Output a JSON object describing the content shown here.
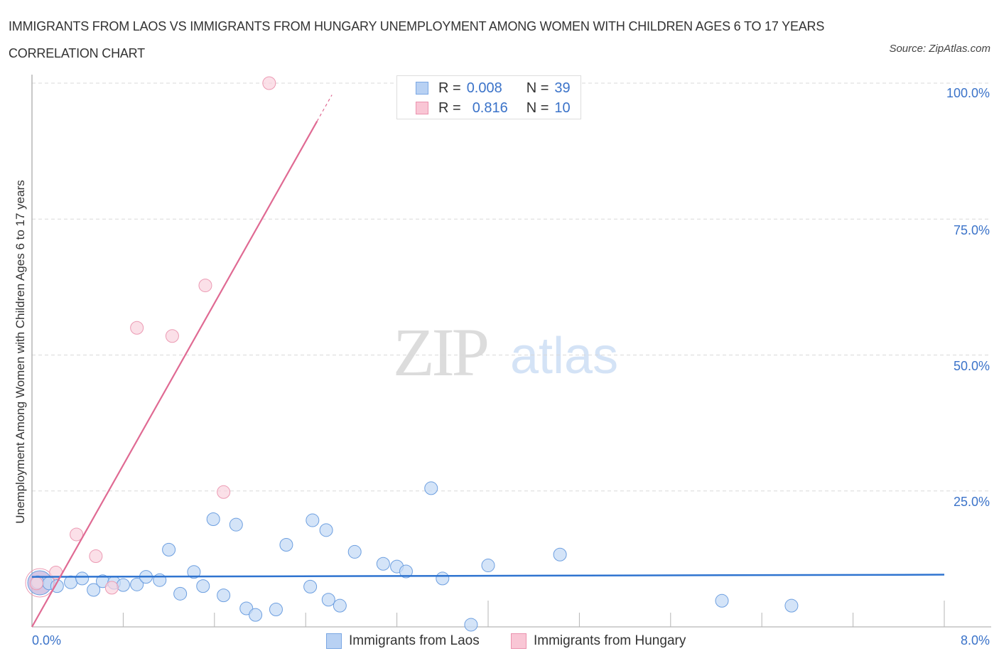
{
  "header": {
    "title": "IMMIGRANTS FROM LAOS VS IMMIGRANTS FROM HUNGARY UNEMPLOYMENT AMONG WOMEN WITH CHILDREN AGES 6 TO 17 YEARS CORRELATION CHART",
    "source": "Source: ZipAtlas.com"
  },
  "watermark": {
    "zip": "ZIP",
    "atlas": "atlas"
  },
  "axes": {
    "ylabel": "Unemployment Among Women with Children Ages 6 to 17 years",
    "yticks": [
      "100.0%",
      "75.0%",
      "50.0%",
      "25.0%"
    ],
    "xticks": {
      "min": "0.0%",
      "max": "8.0%"
    }
  },
  "stats_legend": {
    "rows": [
      {
        "r_label": "R =",
        "r_value": "0.008",
        "n_label": "N =",
        "n_value": "39",
        "color": "#b8d1f3",
        "border": "#7aa7e3"
      },
      {
        "r_label": "R =",
        "r_value": "0.816",
        "n_label": "N =",
        "n_value": "10",
        "color": "#f9c6d5",
        "border": "#eb92ae"
      }
    ]
  },
  "legend": {
    "items": [
      {
        "label": "Immigrants from Laos",
        "color": "#b8d1f3",
        "border": "#7aa7e3"
      },
      {
        "label": "Immigrants from Hungary",
        "color": "#f9c6d5",
        "border": "#eb92ae"
      }
    ]
  },
  "colors": {
    "laos_fill": "#c6dbf5",
    "laos_stroke": "#6d9fe0",
    "laos_line": "#2f74d0",
    "hungary_fill": "#fad3de",
    "hungary_stroke": "#ec9ab3",
    "hungary_line": "#e06a93",
    "value_text": "#3b73c9"
  },
  "chart_data": {
    "type": "scatter",
    "title": "Immigrants from Laos vs Immigrants from Hungary Unemployment Among Women with Children Ages 6 to 17 years Correlation Chart",
    "xlabel": "",
    "ylabel": "Unemployment Among Women with Children Ages 6 to 17 years",
    "xlim": [
      0,
      8
    ],
    "ylim": [
      0,
      100
    ],
    "x_unit": "%",
    "y_unit": "%",
    "grid": true,
    "legend_position": "bottom",
    "series": [
      {
        "name": "Immigrants from Laos",
        "R": 0.008,
        "N": 39,
        "trend": {
          "x": [
            0,
            8
          ],
          "y": [
            9.2,
            9.6
          ]
        },
        "points": [
          {
            "x": 0.05,
            "y": 8.2
          },
          {
            "x": 0.15,
            "y": 8.0
          },
          {
            "x": 0.22,
            "y": 7.5
          },
          {
            "x": 0.34,
            "y": 8.2
          },
          {
            "x": 0.44,
            "y": 8.9
          },
          {
            "x": 0.54,
            "y": 6.8
          },
          {
            "x": 0.62,
            "y": 8.4
          },
          {
            "x": 0.72,
            "y": 8.1
          },
          {
            "x": 0.8,
            "y": 7.7
          },
          {
            "x": 0.92,
            "y": 7.8
          },
          {
            "x": 1.0,
            "y": 9.2
          },
          {
            "x": 1.12,
            "y": 8.6
          },
          {
            "x": 1.2,
            "y": 14.2
          },
          {
            "x": 1.3,
            "y": 6.1
          },
          {
            "x": 1.42,
            "y": 10.1
          },
          {
            "x": 1.5,
            "y": 7.5
          },
          {
            "x": 1.59,
            "y": 19.8
          },
          {
            "x": 1.68,
            "y": 5.8
          },
          {
            "x": 1.79,
            "y": 18.8
          },
          {
            "x": 1.88,
            "y": 3.4
          },
          {
            "x": 1.96,
            "y": 2.2
          },
          {
            "x": 2.14,
            "y": 3.2
          },
          {
            "x": 2.23,
            "y": 15.1
          },
          {
            "x": 2.44,
            "y": 7.4
          },
          {
            "x": 2.46,
            "y": 19.6
          },
          {
            "x": 2.6,
            "y": 5.0
          },
          {
            "x": 2.58,
            "y": 17.8
          },
          {
            "x": 2.7,
            "y": 3.9
          },
          {
            "x": 2.83,
            "y": 13.8
          },
          {
            "x": 3.08,
            "y": 11.6
          },
          {
            "x": 3.2,
            "y": 11.1
          },
          {
            "x": 3.28,
            "y": 10.2
          },
          {
            "x": 3.5,
            "y": 25.5
          },
          {
            "x": 3.6,
            "y": 8.9
          },
          {
            "x": 3.85,
            "y": 0.4
          },
          {
            "x": 4.0,
            "y": 11.3
          },
          {
            "x": 4.63,
            "y": 13.3
          },
          {
            "x": 6.05,
            "y": 4.8
          },
          {
            "x": 6.66,
            "y": 3.9
          }
        ]
      },
      {
        "name": "Immigrants from Hungary",
        "R": 0.816,
        "N": 10,
        "trend": {
          "x": [
            0,
            2.5
          ],
          "y": [
            0,
            93.0
          ]
        },
        "points": [
          {
            "x": 0.04,
            "y": 8.0
          },
          {
            "x": 0.21,
            "y": 10.0
          },
          {
            "x": 0.39,
            "y": 17.0
          },
          {
            "x": 0.56,
            "y": 13.0
          },
          {
            "x": 0.7,
            "y": 7.2
          },
          {
            "x": 0.92,
            "y": 55.0
          },
          {
            "x": 1.23,
            "y": 53.5
          },
          {
            "x": 1.52,
            "y": 62.8
          },
          {
            "x": 1.68,
            "y": 24.8
          },
          {
            "x": 2.08,
            "y": 100.0
          }
        ]
      }
    ]
  }
}
